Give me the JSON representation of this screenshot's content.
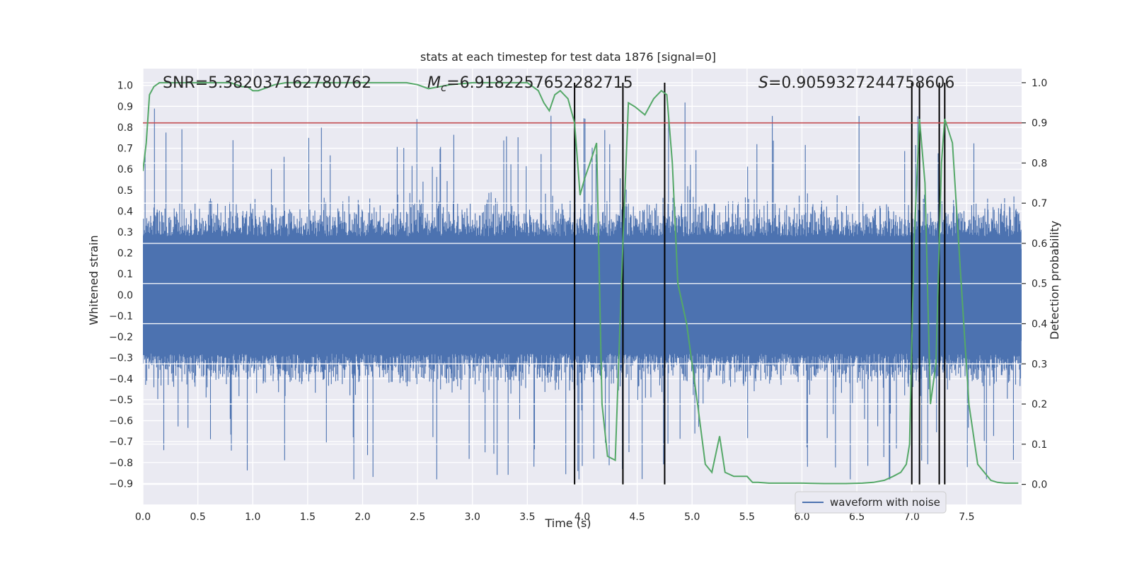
{
  "chart_data": {
    "type": "line",
    "title": "stats at each timestep for test data 1876 [signal=0]",
    "xlabel": "Time (s)",
    "ylabel": "Whitened strain",
    "ylabel_right": "Detection probability",
    "xlim": [
      0.0,
      8.0
    ],
    "ylim": [
      -1.0,
      1.08
    ],
    "ylim_right": [
      -0.05,
      1.035
    ],
    "xticks": [
      "0.0",
      "0.5",
      "1.0",
      "1.5",
      "2.0",
      "2.5",
      "3.0",
      "3.5",
      "4.0",
      "4.5",
      "5.0",
      "5.5",
      "6.0",
      "6.5",
      "7.0",
      "7.5"
    ],
    "yticks": [
      "-0.9",
      "-0.8",
      "-0.7",
      "-0.6",
      "-0.5",
      "-0.4",
      "-0.3",
      "-0.2",
      "-0.1",
      "0.0",
      "0.1",
      "0.2",
      "0.3",
      "0.4",
      "0.5",
      "0.6",
      "0.7",
      "0.8",
      "0.9",
      "1.0"
    ],
    "yticks_right": [
      "0.0",
      "0.1",
      "0.2",
      "0.3",
      "0.4",
      "0.5",
      "0.6",
      "0.7",
      "0.8",
      "0.9",
      "1.0"
    ],
    "annotations": [
      {
        "prefix": "SNR=",
        "value": "5.382037162780762"
      },
      {
        "prefix": "M",
        "sub": "c",
        "prefix_tail": "=",
        "value": "6.9182257652282715"
      },
      {
        "prefix": "S",
        "prefix_tail": "=",
        "value": "0.9059327244758606"
      }
    ],
    "threshold": {
      "axis": "right",
      "value": 0.9,
      "color": "#c44e52"
    },
    "detection_markers_x": [
      3.93,
      4.37,
      4.75,
      7.0,
      7.07,
      7.25,
      7.3
    ],
    "series": [
      {
        "name": "waveform with noise",
        "axis": "left",
        "color": "#4c72b0",
        "kind": "noise",
        "duration": 8.0,
        "sample_count": 1600,
        "typical_envelope": [
          -0.5,
          0.5
        ],
        "peak_range": [
          -0.88,
          0.99
        ]
      },
      {
        "name": "detection probability",
        "axis": "right",
        "color": "#55a868",
        "x": [
          0.0,
          0.03,
          0.06,
          0.1,
          0.15,
          0.2,
          0.3,
          0.5,
          0.7,
          0.8,
          0.9,
          0.95,
          1.0,
          1.05,
          1.1,
          1.2,
          1.3,
          1.5,
          1.7,
          2.0,
          2.2,
          2.4,
          2.5,
          2.55,
          2.6,
          2.7,
          2.8,
          3.0,
          3.2,
          3.5,
          3.6,
          3.65,
          3.7,
          3.75,
          3.8,
          3.87,
          3.93,
          3.98,
          4.02,
          4.07,
          4.13,
          4.18,
          4.23,
          4.3,
          4.37,
          4.42,
          4.48,
          4.57,
          4.65,
          4.72,
          4.77,
          4.82,
          4.87,
          4.95,
          5.05,
          5.12,
          5.18,
          5.25,
          5.3,
          5.38,
          5.44,
          5.5,
          5.55,
          5.6,
          5.7,
          5.8,
          5.9,
          6.0,
          6.2,
          6.4,
          6.55,
          6.65,
          6.75,
          6.83,
          6.9,
          6.95,
          6.98,
          7.02,
          7.07,
          7.12,
          7.17,
          7.22,
          7.27,
          7.3,
          7.37,
          7.45,
          7.52,
          7.6,
          7.66,
          7.72,
          7.78,
          7.85,
          7.92,
          7.97
        ],
        "values": [
          0.78,
          0.85,
          0.97,
          0.99,
          1.0,
          1.0,
          1.0,
          1.0,
          1.0,
          1.0,
          0.99,
          0.99,
          0.98,
          0.98,
          0.985,
          0.995,
          1.0,
          1.0,
          1.0,
          1.0,
          1.0,
          1.0,
          0.995,
          0.99,
          0.985,
          0.99,
          0.995,
          1.0,
          1.0,
          1.0,
          0.98,
          0.95,
          0.93,
          0.97,
          0.98,
          0.96,
          0.9,
          0.72,
          0.76,
          0.8,
          0.85,
          0.2,
          0.07,
          0.06,
          0.6,
          0.95,
          0.94,
          0.92,
          0.96,
          0.98,
          0.97,
          0.8,
          0.5,
          0.4,
          0.2,
          0.05,
          0.03,
          0.12,
          0.03,
          0.02,
          0.02,
          0.02,
          0.005,
          0.005,
          0.003,
          0.003,
          0.003,
          0.003,
          0.002,
          0.002,
          0.003,
          0.005,
          0.01,
          0.02,
          0.03,
          0.05,
          0.1,
          0.6,
          0.91,
          0.75,
          0.2,
          0.3,
          0.8,
          0.91,
          0.85,
          0.5,
          0.2,
          0.05,
          0.03,
          0.01,
          0.005,
          0.003,
          0.003,
          0.003
        ]
      }
    ],
    "legend": {
      "position": "lower-right",
      "entries": [
        "waveform with noise"
      ]
    }
  }
}
